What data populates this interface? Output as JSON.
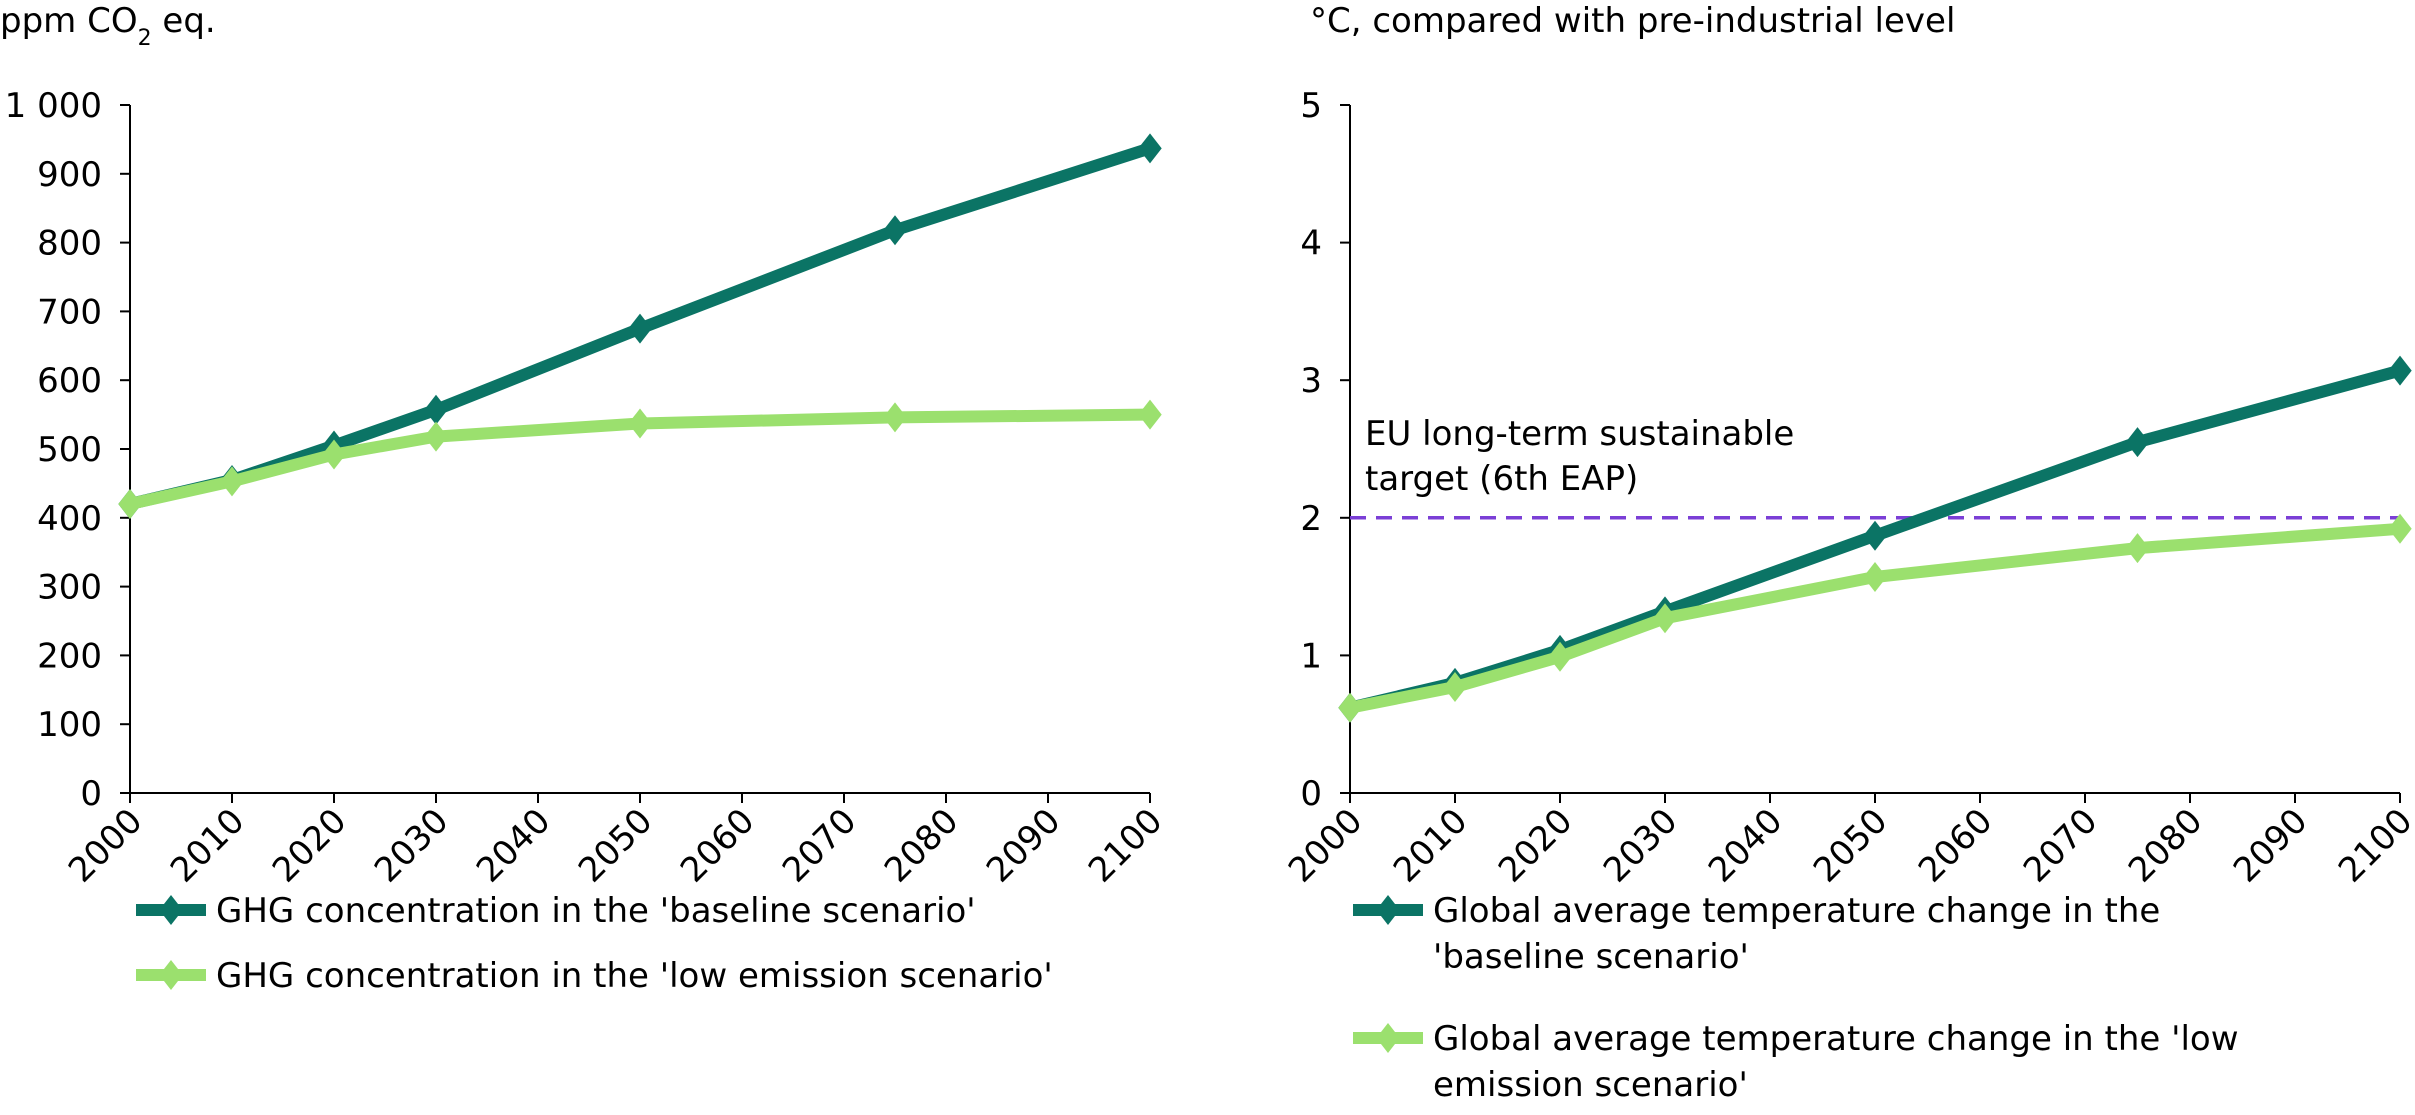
{
  "chart_data": [
    {
      "type": "line",
      "ylabel": "ppm CO₂ eq.",
      "xlim": [
        2000,
        2100
      ],
      "ylim": [
        0,
        1000
      ],
      "xticks": [
        2000,
        2010,
        2020,
        2030,
        2040,
        2050,
        2060,
        2070,
        2080,
        2090,
        2100
      ],
      "ytick_labels": [
        "0",
        "100",
        "200",
        "300",
        "400",
        "500",
        "600",
        "700",
        "800",
        "900",
        "1 000"
      ],
      "grid": false,
      "legend_position": "bottom",
      "series": [
        {
          "name": "GHG concentration in the 'baseline scenario'",
          "color": "#0b7465",
          "x": [
            2000,
            2010,
            2020,
            2030,
            2050,
            2075,
            2100
          ],
          "values": [
            420,
            455,
            505,
            557,
            675,
            818,
            937
          ]
        },
        {
          "name": "GHG concentration in the 'low emission scenario'",
          "color": "#9be06e",
          "x": [
            2000,
            2010,
            2020,
            2030,
            2050,
            2075,
            2100
          ],
          "values": [
            420,
            453,
            492,
            518,
            537,
            546,
            550
          ]
        }
      ]
    },
    {
      "type": "line",
      "ylabel": "°C, compared with pre-industrial level",
      "xlim": [
        2000,
        2100
      ],
      "ylim": [
        0,
        5
      ],
      "xticks": [
        2000,
        2010,
        2020,
        2030,
        2040,
        2050,
        2060,
        2070,
        2080,
        2090,
        2100
      ],
      "ytick_labels": [
        "0",
        "1",
        "2",
        "3",
        "4",
        "5"
      ],
      "grid": false,
      "legend_position": "bottom",
      "reference_line": {
        "value": 2,
        "color": "#7b3fd6",
        "style": "dashed"
      },
      "annotation_lines": [
        "EU long-term sustainable",
        "target (6th EAP)"
      ],
      "series": [
        {
          "name": "Global average temperature change in the 'baseline scenario'",
          "color": "#0b7465",
          "x": [
            2000,
            2010,
            2020,
            2030,
            2050,
            2075,
            2100
          ],
          "values": [
            0.62,
            0.8,
            1.04,
            1.32,
            1.87,
            2.55,
            3.07
          ]
        },
        {
          "name": "Global average temperature change in the 'low emission scenario'",
          "color": "#9be06e",
          "x": [
            2000,
            2010,
            2020,
            2030,
            2050,
            2075,
            2100
          ],
          "values": [
            0.62,
            0.77,
            0.99,
            1.27,
            1.57,
            1.78,
            1.92
          ]
        }
      ]
    }
  ],
  "legend_lines": [
    [
      "GHG concentration in the 'baseline scenario'"
    ],
    [
      "GHG concentration in the 'low emission scenario'"
    ],
    [
      "Global average temperature change in the",
      "'baseline scenario'"
    ],
    [
      "Global average temperature change in the 'low",
      "emission scenario'"
    ]
  ]
}
